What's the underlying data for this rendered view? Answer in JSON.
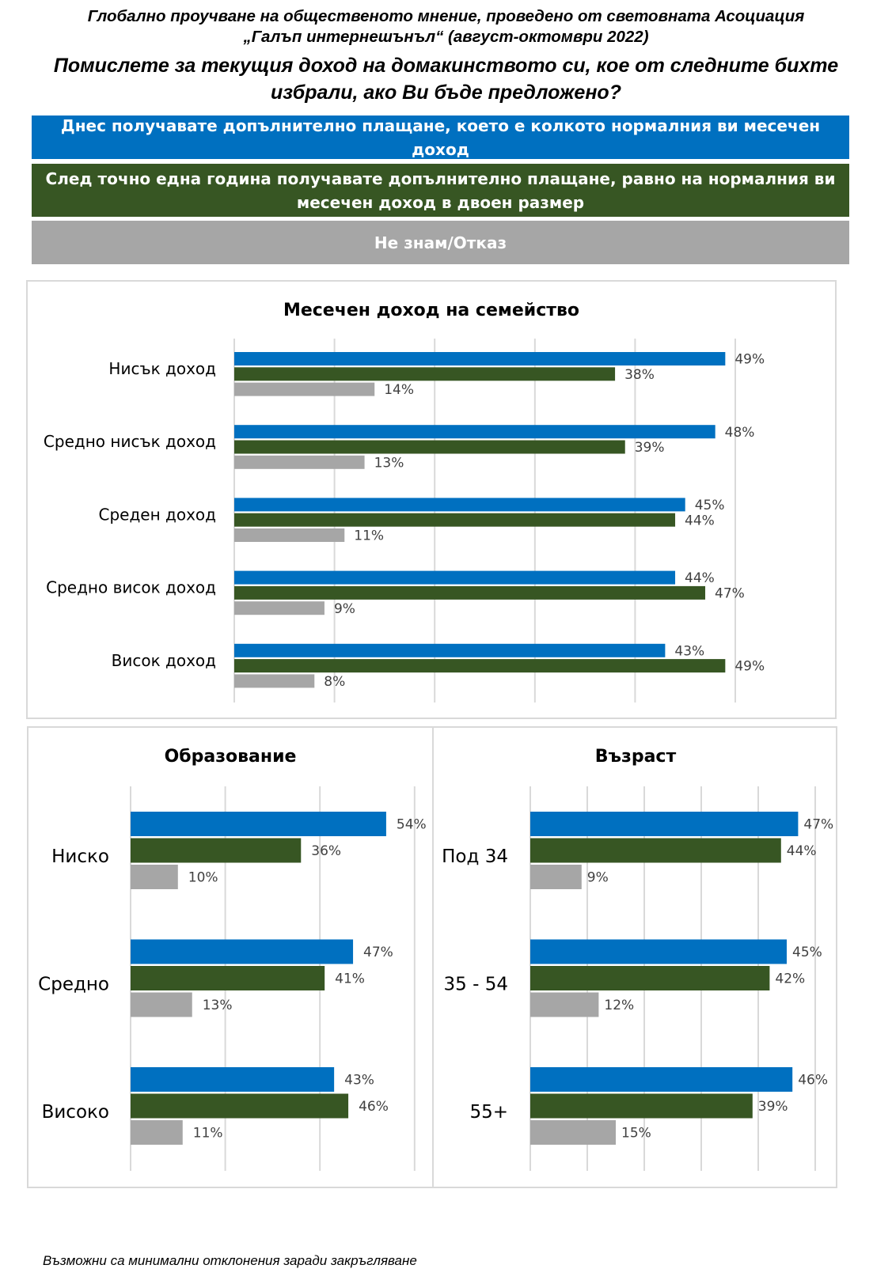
{
  "header": {
    "line1": "Глобално проучване на общественото мнение, проведено от световната Асоциация",
    "line2": "„Галъп интернешънъл“ (август-октомври 2022)",
    "question_line1": "Помислете за текущия доход на домакинството си, кое от следните бихте",
    "question_line2": "избрали, ако Ви бъде предложено?"
  },
  "legend": {
    "today": "Днес получавате допълнително плащане, което е колкото нормалния ви месечен доход",
    "year_line1": "След точно една година получавате допълнително плащане, равно на нормалния ви",
    "year_line2": "месечен доход в двоен размер",
    "dontknow": "Не знам/Отказ"
  },
  "colors": {
    "today": "#0070c0",
    "year": "#375623",
    "dontknow": "#a6a6a6",
    "grid": "#d9d9d9"
  },
  "footnote": "Възможни са минимални отклонения заради закръгляване",
  "chart_data": [
    {
      "type": "bar",
      "orientation": "horizontal",
      "title": "Месечен доход на семейство",
      "categories": [
        "Нисък доход",
        "Средно нисък доход",
        "Среден доход",
        "Средно висок доход",
        "Висок доход"
      ],
      "series": [
        {
          "name": "Днес получавате допълнително плащане, което е колкото нормалния ви месечен доход",
          "color": "#0070c0",
          "values": [
            49,
            48,
            45,
            44,
            43
          ],
          "labels": [
            "49%",
            "48%",
            "45%",
            "44%",
            "43%"
          ]
        },
        {
          "name": "След точно една година получавате допълнително плащане, равно на нормалния ви месечен доход в двоен размер",
          "color": "#375623",
          "values": [
            38,
            39,
            44,
            47,
            49
          ],
          "labels": [
            "38%",
            "39%",
            "44%",
            "47%",
            "49%"
          ]
        },
        {
          "name": "Не знам/Отказ",
          "color": "#a6a6a6",
          "values": [
            14,
            13,
            11,
            9,
            8
          ],
          "labels": [
            "14%",
            "13%",
            "11%",
            "9%",
            "8%"
          ]
        }
      ],
      "xlim": [
        0,
        50
      ],
      "grid": true
    },
    {
      "type": "bar",
      "orientation": "horizontal",
      "title": "Образование",
      "categories": [
        "Ниско",
        "Средно",
        "Високо"
      ],
      "series": [
        {
          "name": "Днес получавате допълнително плащане, което е колкото нормалния ви месечен доход",
          "color": "#0070c0",
          "values": [
            54,
            47,
            43
          ],
          "labels": [
            "54%",
            "47%",
            "43%"
          ]
        },
        {
          "name": "След точно една година получавате допълнително плащане, равно на нормалния ви месечен доход в двоен размер",
          "color": "#375623",
          "values": [
            36,
            41,
            46
          ],
          "labels": [
            "36%",
            "41%",
            "46%"
          ]
        },
        {
          "name": "Не знам/Отказ",
          "color": "#a6a6a6",
          "values": [
            10,
            13,
            11
          ],
          "labels": [
            "10%",
            "13%",
            "11%"
          ]
        }
      ],
      "xlim": [
        0,
        60
      ],
      "grid": true
    },
    {
      "type": "bar",
      "orientation": "horizontal",
      "title": "Възраст",
      "categories": [
        "Под 34",
        "35 - 54",
        "55+"
      ],
      "series": [
        {
          "name": "Днес получавате допълнително плащане, което е колкото нормалния ви месечен доход",
          "color": "#0070c0",
          "values": [
            47,
            45,
            46
          ],
          "labels": [
            "47%",
            "45%",
            "46%"
          ]
        },
        {
          "name": "След точно една година получавате допълнително плащане, равно на нормалния ви месечен доход в двоен размер",
          "color": "#375623",
          "values": [
            44,
            42,
            39
          ],
          "labels": [
            "44%",
            "42%",
            "39%"
          ]
        },
        {
          "name": "Не знам/Отказ",
          "color": "#a6a6a6",
          "values": [
            9,
            12,
            15
          ],
          "labels": [
            "9%",
            "12%",
            "15%"
          ]
        }
      ],
      "xlim": [
        0,
        50
      ],
      "grid": true
    }
  ]
}
